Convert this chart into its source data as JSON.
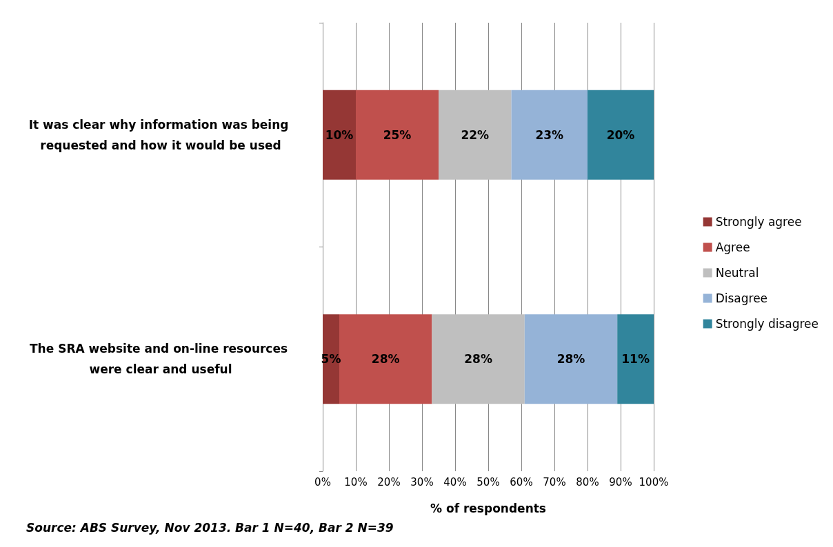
{
  "chart_data": {
    "type": "bar",
    "orientation": "horizontal",
    "stacked": true,
    "categories": [
      "It was clear why information was being requested and how it would be used",
      "The SRA website and on-line resources were clear and useful"
    ],
    "series": [
      {
        "name": "Strongly agree",
        "color": "#953735",
        "values": [
          10,
          5
        ],
        "value_labels": [
          "10%",
          "5%"
        ]
      },
      {
        "name": "Agree",
        "color": "#c0504d",
        "values": [
          25,
          28
        ],
        "value_labels": [
          "25%",
          "28%"
        ]
      },
      {
        "name": "Neutral",
        "color": "#bfbfbf",
        "values": [
          22,
          28
        ],
        "value_labels": [
          "22%",
          "28%"
        ]
      },
      {
        "name": "Disagree",
        "color": "#95b3d7",
        "values": [
          23,
          28
        ],
        "value_labels": [
          "23%",
          "28%"
        ]
      },
      {
        "name": "Strongly disagree",
        "color": "#31859c",
        "values": [
          20,
          11
        ],
        "value_labels": [
          "20%",
          "11%"
        ]
      }
    ],
    "xlim": [
      0,
      100
    ],
    "xticks": [
      {
        "value": 0,
        "label": "0%"
      },
      {
        "value": 10,
        "label": "10%"
      },
      {
        "value": 20,
        "label": "20%"
      },
      {
        "value": 30,
        "label": "30%"
      },
      {
        "value": 40,
        "label": "40%"
      },
      {
        "value": 50,
        "label": "50%"
      },
      {
        "value": 60,
        "label": "60%"
      },
      {
        "value": 70,
        "label": "70%"
      },
      {
        "value": 80,
        "label": "80%"
      },
      {
        "value": 90,
        "label": "90%"
      },
      {
        "value": 100,
        "label": "100%"
      }
    ],
    "xlabel": "% of respondents",
    "grid": "x",
    "legend": "right",
    "annotations": [
      "Source: ABS Survey, Nov 2013. Bar 1 N=40, Bar 2 N=39"
    ]
  }
}
